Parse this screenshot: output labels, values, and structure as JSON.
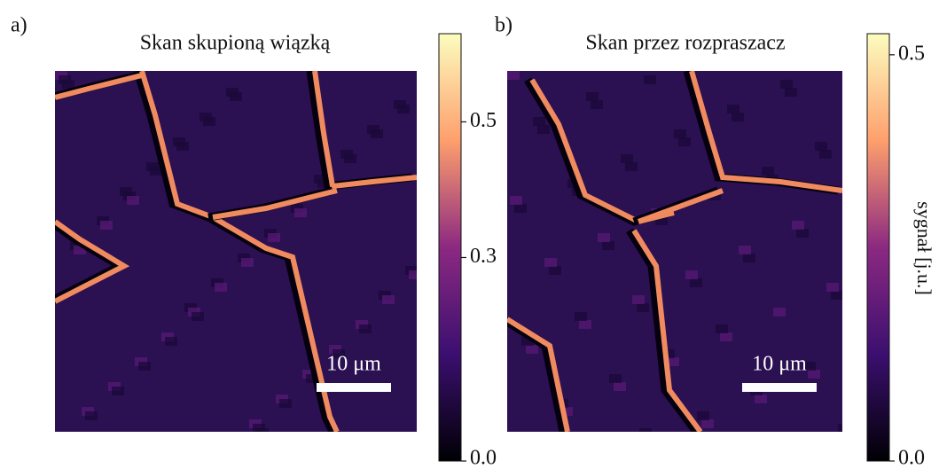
{
  "chart_data": [
    {
      "type": "image",
      "panel_label": "a)",
      "title": "Skan skupioną wiązką",
      "scalebar_label": "10 μm",
      "colormap": "magma",
      "ylim": [
        0,
        0.63
      ],
      "yticks": [
        {
          "value": 0,
          "label": "0.0"
        },
        0.3,
        0.5
      ]
    },
    {
      "type": "image",
      "panel_label": "b)",
      "title": "Skan przez rozpraszacz",
      "scalebar_label": "10 μm",
      "colormap": "magma",
      "ylim": [
        0,
        0.526
      ],
      "yticks": [
        {
          "value": 0,
          "label": "0.0"
        },
        0.5
      ],
      "colorbar_label": "sygnał [j.u.]"
    }
  ]
}
